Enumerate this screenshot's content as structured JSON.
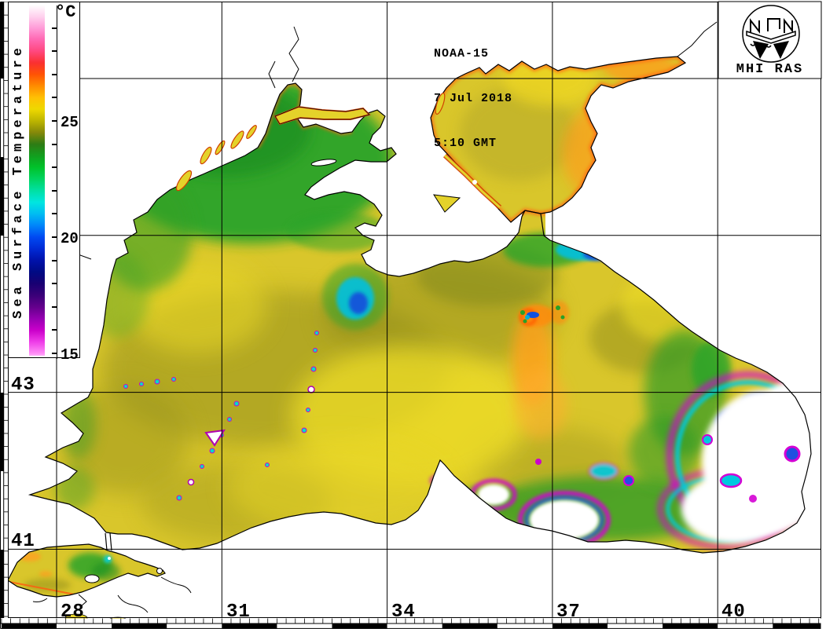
{
  "header": {
    "satellite": "NOAA-15",
    "date": "7 Jul 2018",
    "time": "5:10 GMT"
  },
  "logo": {
    "label": "MHI RAS",
    "icon": "mhi-ras-emblem-icon"
  },
  "colorbar": {
    "unit": "°C",
    "title": "Sea Surface Temperature",
    "scale_min": 15,
    "scale_max": 30,
    "labeled_ticks": [
      {
        "value": 25,
        "label": "25"
      },
      {
        "value": 20,
        "label": "20"
      },
      {
        "value": 15,
        "label": "15"
      }
    ],
    "tick_values": [
      29,
      28,
      27,
      26,
      25,
      24,
      23,
      22,
      21,
      20,
      19,
      18,
      17,
      16,
      15
    ],
    "gradient_stops": [
      {
        "t": 30.0,
        "color": "#ffffff"
      },
      {
        "t": 29.5,
        "color": "#ffd2ee"
      },
      {
        "t": 29.0,
        "color": "#ff9cd8"
      },
      {
        "t": 28.5,
        "color": "#ff68b2"
      },
      {
        "t": 28.0,
        "color": "#ff4880"
      },
      {
        "t": 27.5,
        "color": "#fa3030"
      },
      {
        "t": 27.0,
        "color": "#ff5404"
      },
      {
        "t": 26.5,
        "color": "#ff8c00"
      },
      {
        "t": 26.0,
        "color": "#ffc004"
      },
      {
        "t": 25.5,
        "color": "#eed800"
      },
      {
        "t": 25.0,
        "color": "#bcb400"
      },
      {
        "t": 24.5,
        "color": "#84880a"
      },
      {
        "t": 24.0,
        "color": "#2e7c14"
      },
      {
        "t": 23.5,
        "color": "#129e1e"
      },
      {
        "t": 23.0,
        "color": "#00c22a"
      },
      {
        "t": 22.5,
        "color": "#00d462"
      },
      {
        "t": 22.0,
        "color": "#00e0a4"
      },
      {
        "t": 21.5,
        "color": "#00e6e0"
      },
      {
        "t": 21.0,
        "color": "#00bcf2"
      },
      {
        "t": 20.5,
        "color": "#0086fa"
      },
      {
        "t": 20.0,
        "color": "#004af2"
      },
      {
        "t": 19.5,
        "color": "#002ad4"
      },
      {
        "t": 19.0,
        "color": "#0012aa"
      },
      {
        "t": 18.5,
        "color": "#000a84"
      },
      {
        "t": 18.0,
        "color": "#180072"
      },
      {
        "t": 17.5,
        "color": "#3a0078"
      },
      {
        "t": 17.0,
        "color": "#64008c"
      },
      {
        "t": 16.5,
        "color": "#9600b2"
      },
      {
        "t": 16.0,
        "color": "#ca00ca"
      },
      {
        "t": 15.5,
        "color": "#ee3ce8"
      },
      {
        "t": 15.0,
        "color": "#ff8cf6"
      },
      {
        "t": 14.9,
        "color": "#ffaefa"
      }
    ]
  },
  "grid": {
    "lon_labels": [
      {
        "label": "28",
        "deg": 28
      },
      {
        "label": "31",
        "deg": 31
      },
      {
        "label": "34",
        "deg": 34
      },
      {
        "label": "37",
        "deg": 37
      },
      {
        "label": "40",
        "deg": 40
      }
    ],
    "lat_labels": [
      {
        "label": "43",
        "deg": 43
      },
      {
        "label": "41",
        "deg": 41
      }
    ]
  },
  "map_colors": {
    "sea_warm_yellow": "#d9c62b",
    "shelf_green": "#2aa42c",
    "warm_orange": "#ff9c1e",
    "coastal_red_fringe": "#ff6414",
    "cold_cyan": "#00c8e0",
    "cold_blue": "#2050e0",
    "cold_purple_fringe": "#d400d4",
    "cloud_no_data": "#ffffff",
    "land": "#ffffff",
    "coastline": "#000000"
  }
}
